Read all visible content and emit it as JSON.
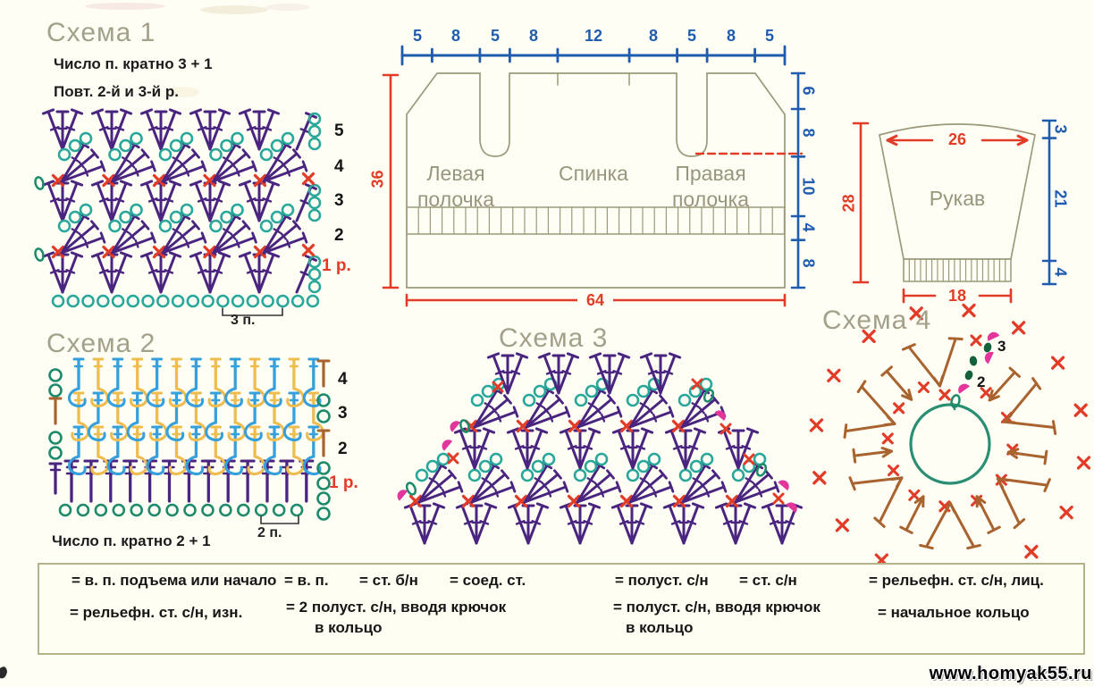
{
  "colors": {
    "olive": "#9c9a7a",
    "titleOlive": "#a3a189",
    "blue": "#1f5cb0",
    "red": "#e23c28",
    "teal": "#2aa79b",
    "green": "#1c8a6b",
    "darkgreen": "#14623c",
    "purple": "#4a2580",
    "brown": "#a8632f",
    "lightblue": "#36a0dc",
    "yellow": "#efbd4f",
    "pink": "#e3359c",
    "ringGreen": "#2a8f72",
    "black": "#1a1a1a"
  },
  "watermark": "www.homyak55.ru",
  "scheme1": {
    "title": "Схема 1",
    "note1": "Число п. кратно 3 + 1",
    "note2": "Повт. 2-й и 3-й р.",
    "row_labels": [
      "5",
      "4",
      "3",
      "2",
      "1 р."
    ],
    "bracket_label": "3 п.",
    "rows": [
      {
        "row": "5",
        "type": "fans",
        "count": 5
      },
      {
        "row": "4",
        "type": "clusters",
        "count": 5
      },
      {
        "row": "3",
        "type": "fans",
        "count": 5
      },
      {
        "row": "2",
        "type": "clusters",
        "count": 5
      },
      {
        "row": "1",
        "type": "fans",
        "count": 5
      },
      {
        "row": "base",
        "type": "chain",
        "count": 18
      }
    ]
  },
  "scheme2": {
    "title": "Схема 2",
    "note": "Число п. кратно 2 + 1",
    "row_labels": [
      "4",
      "3",
      "2",
      "1 р."
    ],
    "bracket_label": "2 п.",
    "columns": 13,
    "chain_count": 14,
    "relief_rows": 3
  },
  "scheme3": {
    "title": "Схема 3",
    "rows": [
      {
        "type": "fans",
        "count": 4
      },
      {
        "type": "clusters",
        "count": 5
      },
      {
        "type": "fans",
        "count": 6
      },
      {
        "type": "clusters",
        "count": 7
      },
      {
        "type": "fans",
        "count": 7
      }
    ]
  },
  "scheme4": {
    "title": "Схема 4",
    "round_labels": [
      "2",
      "3"
    ],
    "inner_sc": 11,
    "post_symbols": 12,
    "outer_sc": 16
  },
  "garment": {
    "label_left": "Левая полочка",
    "label_center": "Спинка",
    "label_right": "Правая полочка",
    "top_segments": [
      "5",
      "8",
      "5",
      "8",
      "12",
      "8",
      "5",
      "8",
      "5"
    ],
    "right_segments": [
      "6",
      "8",
      "10",
      "4",
      "8"
    ],
    "height": "36",
    "width": "64"
  },
  "sleeve": {
    "label": "Рукав",
    "top_width": "26",
    "height": "28",
    "bottom_width": "18",
    "right_segments": [
      "3",
      "21",
      "4"
    ]
  },
  "legend": {
    "row1": [
      {
        "icon": "chain-start-dot-icon",
        "text": "= в. п. подъема или начало"
      },
      {
        "icon": "chain-icon",
        "text": "= в. п."
      },
      {
        "icon": "sc-icon",
        "text": "= ст. б/н"
      },
      {
        "icon": "slip-icon",
        "text": "= соед. ст."
      },
      {
        "icon": "hdc-icon",
        "text": "= полуст. с/н"
      },
      {
        "icon": "dc-icon",
        "text": "= ст. с/н"
      },
      {
        "icon": "relief-front-icon",
        "text": "= рельефн. ст. с/н, лиц."
      }
    ],
    "row2": [
      {
        "icon": "relief-back-icon",
        "lines": [
          "= рельефн. ст. с/н, изн.",
          ""
        ]
      },
      {
        "icon": "2hdc-in-ring-icon",
        "lines": [
          "= 2 полуст. с/н, вводя крючок",
          "в кольцо"
        ]
      },
      {
        "icon": "hdc-in-ring-icon",
        "lines": [
          "= полуст. с/н, вводя крючок",
          "в кольцо"
        ]
      },
      {
        "icon": "ring-icon",
        "lines": [
          "= начальное кольцо",
          ""
        ]
      }
    ]
  }
}
